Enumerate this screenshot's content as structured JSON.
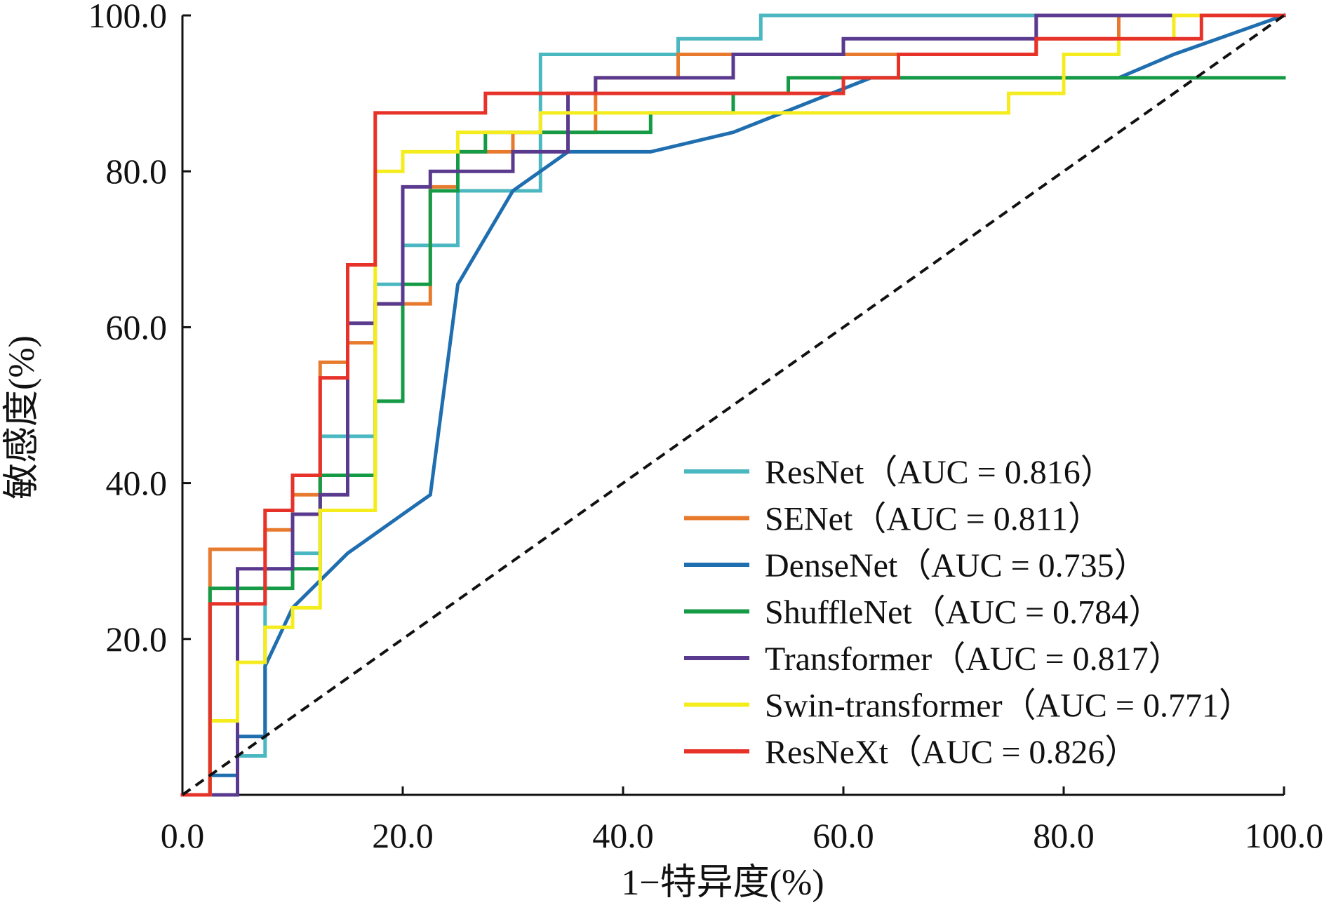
{
  "chart_data": {
    "type": "line",
    "title": "",
    "xlabel": "1−特异度(%)",
    "ylabel": "敏感度(%)",
    "xlim": [
      0,
      100
    ],
    "ylim": [
      0,
      100
    ],
    "xticks": [
      "0.0",
      "20.0",
      "40.0",
      "60.0",
      "80.0",
      "100.0"
    ],
    "yticks": [
      "20.0",
      "40.0",
      "60.0",
      "80.0",
      "100.0"
    ],
    "grid": false,
    "legend_position": "bottom-right",
    "reference_line": {
      "from": [
        0,
        0
      ],
      "to": [
        100,
        100
      ],
      "style": "dashed",
      "color": "#111111"
    },
    "series": [
      {
        "name": "ResNet",
        "label": "ResNet（AUC = 0.816）",
        "color": "#4BB7C1",
        "x": [
          0,
          5,
          5,
          7.5,
          7.5,
          10,
          10,
          12.5,
          12.5,
          17.5,
          17.5,
          20,
          20,
          22.5,
          22.5,
          25,
          25,
          32.5,
          32.5,
          45,
          45,
          52.5,
          52.5,
          75,
          75,
          100
        ],
        "y": [
          0,
          0,
          5,
          5,
          29,
          29,
          31,
          31,
          46,
          46,
          65.5,
          65.5,
          70.5,
          70.5,
          70.5,
          70.5,
          77.5,
          77.5,
          95,
          95,
          97,
          97,
          100,
          100,
          100,
          100
        ]
      },
      {
        "name": "SENet",
        "label": "SENet（AUC = 0.811）",
        "color": "#E87A2E",
        "x": [
          0,
          2.5,
          2.5,
          7.5,
          7.5,
          10,
          10,
          12.5,
          12.5,
          15,
          15,
          17.5,
          17.5,
          20,
          20,
          22.5,
          22.5,
          25,
          25,
          27.5,
          27.5,
          30,
          30,
          37.5,
          37.5,
          45,
          45,
          47.5,
          47.5,
          77.5,
          77.5,
          85,
          85,
          100
        ],
        "y": [
          0,
          0,
          31.5,
          31.5,
          34,
          34,
          38.5,
          38.5,
          55.5,
          55.5,
          58,
          58,
          63,
          63,
          63,
          63,
          78,
          78,
          82.5,
          82.5,
          82.5,
          82.5,
          85,
          85,
          92,
          92,
          95,
          95,
          95,
          95,
          97,
          97,
          100,
          100
        ]
      },
      {
        "name": "DenseNet",
        "label": "DenseNet（AUC = 0.735）",
        "color": "#1F6EB0",
        "x": [
          0,
          2.5,
          2.5,
          5,
          5,
          7.5,
          7.5,
          10,
          10,
          15,
          15,
          17.5,
          17.5,
          20,
          20,
          22.5,
          22.5,
          25,
          25,
          30,
          30,
          35,
          35,
          42.5,
          42.5,
          50,
          50,
          62.5,
          62.5,
          85,
          85,
          90,
          90,
          100
        ],
        "y": [
          0,
          0,
          2.5,
          2.5,
          7.5,
          7.5,
          16.5,
          24,
          24,
          31,
          31,
          33.5,
          33.5,
          36,
          36,
          38.5,
          38.5,
          65.5,
          65.5,
          77.5,
          77.5,
          82.5,
          82.5,
          82.5,
          82.5,
          85,
          85,
          92,
          92,
          92,
          92,
          95,
          95,
          100
        ]
      },
      {
        "name": "ShuffleNet",
        "label": "ShuffleNet（AUC = 0.784）",
        "color": "#159A46",
        "x": [
          0,
          2.5,
          2.5,
          10,
          10,
          12.5,
          12.5,
          17.5,
          17.5,
          20,
          20,
          22.5,
          22.5,
          25,
          25,
          27.5,
          27.5,
          32.5,
          32.5,
          42.5,
          42.5,
          50,
          50,
          55,
          55,
          60,
          60,
          100
        ],
        "y": [
          0,
          0,
          26.5,
          26.5,
          29,
          29,
          41,
          41,
          50.5,
          50.5,
          65.5,
          65.5,
          77.5,
          77.5,
          82.5,
          82.5,
          85,
          85,
          85,
          85,
          87.5,
          87.5,
          90,
          90,
          92,
          92,
          92,
          92
        ]
      },
      {
        "name": "Transformer",
        "label": "Transformer（AUC = 0.817）",
        "color": "#5A3A8E",
        "x": [
          0,
          5,
          5,
          10,
          10,
          12.5,
          12.5,
          15,
          15,
          17.5,
          17.5,
          20,
          20,
          22.5,
          22.5,
          30,
          30,
          35,
          35,
          37.5,
          37.5,
          50,
          50,
          60,
          60,
          77.5,
          77.5,
          100
        ],
        "y": [
          0,
          0,
          29,
          29,
          36,
          36,
          38.5,
          38.5,
          60.5,
          60.5,
          63,
          63,
          78,
          78,
          80,
          80,
          82.5,
          82.5,
          90,
          90,
          92,
          92,
          95,
          95,
          97,
          97,
          100,
          100
        ]
      },
      {
        "name": "Swin-transformer",
        "label": "Swin-transformer（AUC = 0.771）",
        "color": "#F5EC1E",
        "x": [
          0,
          2.5,
          2.5,
          5,
          5,
          7.5,
          7.5,
          10,
          10,
          12.5,
          12.5,
          17.5,
          17.5,
          20,
          20,
          25,
          25,
          32.5,
          32.5,
          75,
          75,
          80,
          80,
          85,
          85,
          90,
          90,
          100
        ],
        "y": [
          0,
          0,
          9.5,
          9.5,
          17,
          17,
          21.5,
          21.5,
          24,
          24,
          36.5,
          36.5,
          80,
          80,
          82.5,
          82.5,
          85,
          85,
          87.5,
          87.5,
          90,
          90,
          95,
          95,
          97,
          97,
          100,
          100
        ]
      },
      {
        "name": "ResNeXt",
        "label": "ResNeXt（AUC = 0.826）",
        "color": "#E63229",
        "x": [
          0,
          2.5,
          2.5,
          7.5,
          7.5,
          10,
          10,
          12.5,
          12.5,
          15,
          15,
          17.5,
          17.5,
          27.5,
          27.5,
          60,
          60,
          65,
          65,
          77.5,
          77.5,
          92.5,
          92.5,
          100
        ],
        "y": [
          0,
          0,
          24.5,
          24.5,
          36.5,
          36.5,
          41,
          41,
          53.5,
          53.5,
          68,
          68,
          87.5,
          87.5,
          90,
          90,
          92,
          92,
          95,
          95,
          97,
          97,
          100,
          100
        ]
      }
    ]
  }
}
